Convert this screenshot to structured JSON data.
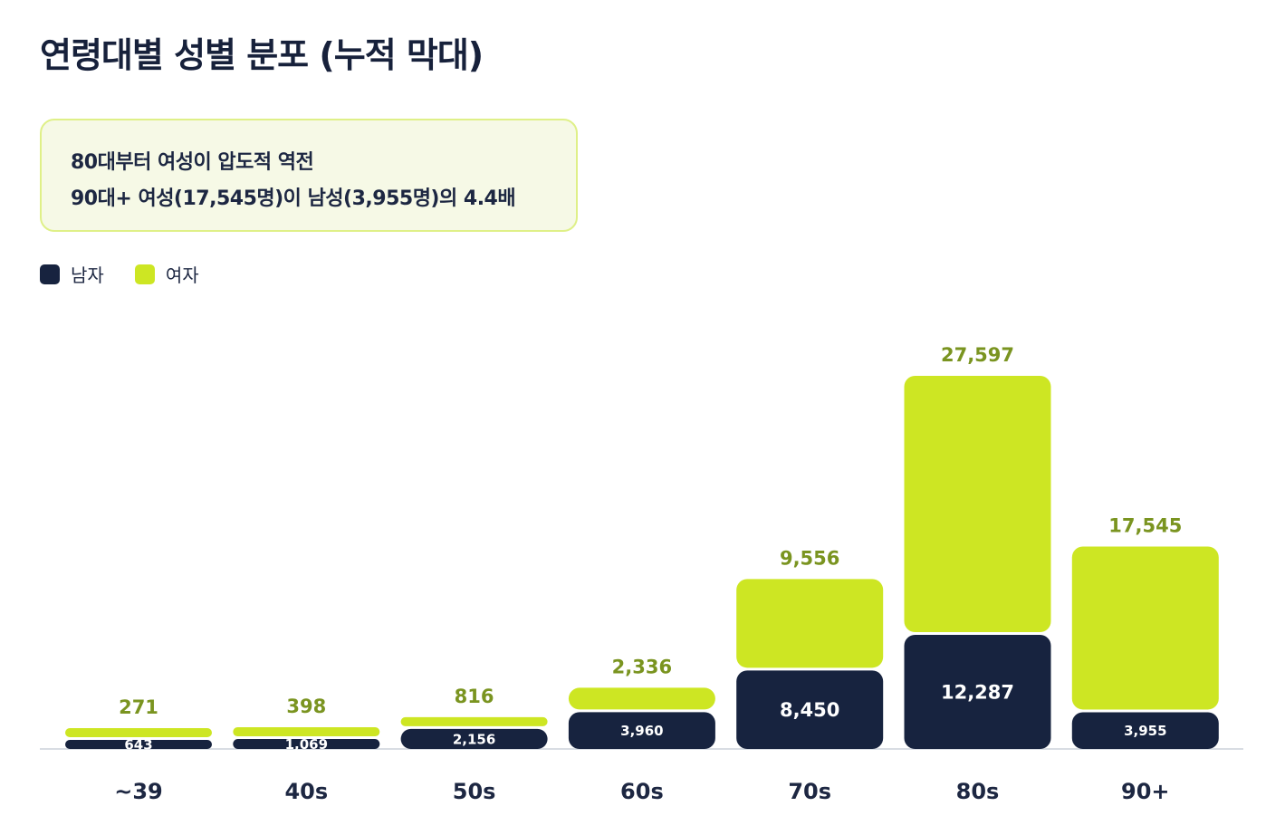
{
  "title": "연령대별 성별 분포 (누적 막대)",
  "note": {
    "line1": "80대부터 여성이 압도적 역전",
    "line2": "90대+ 여성(17,545명)이 남성(3,955명)의 4.4배"
  },
  "legend": [
    {
      "label": "남자",
      "color": "#17233f"
    },
    {
      "label": "여자",
      "color": "#cde623"
    }
  ],
  "chart_data": {
    "type": "bar",
    "stacked": true,
    "categories": [
      "~39",
      "40s",
      "50s",
      "60s",
      "70s",
      "80s",
      "90+"
    ],
    "series": [
      {
        "name": "남자",
        "color": "#17233f",
        "values": [
          643,
          1069,
          2156,
          3960,
          8450,
          12287,
          3955
        ]
      },
      {
        "name": "여자",
        "color": "#cde623",
        "values": [
          271,
          398,
          816,
          2336,
          9556,
          27597,
          17545
        ]
      }
    ],
    "value_label_colors": {
      "inside": "#ffffff",
      "top": "#7a9420"
    },
    "grid": false,
    "legend_position": "top-left"
  }
}
